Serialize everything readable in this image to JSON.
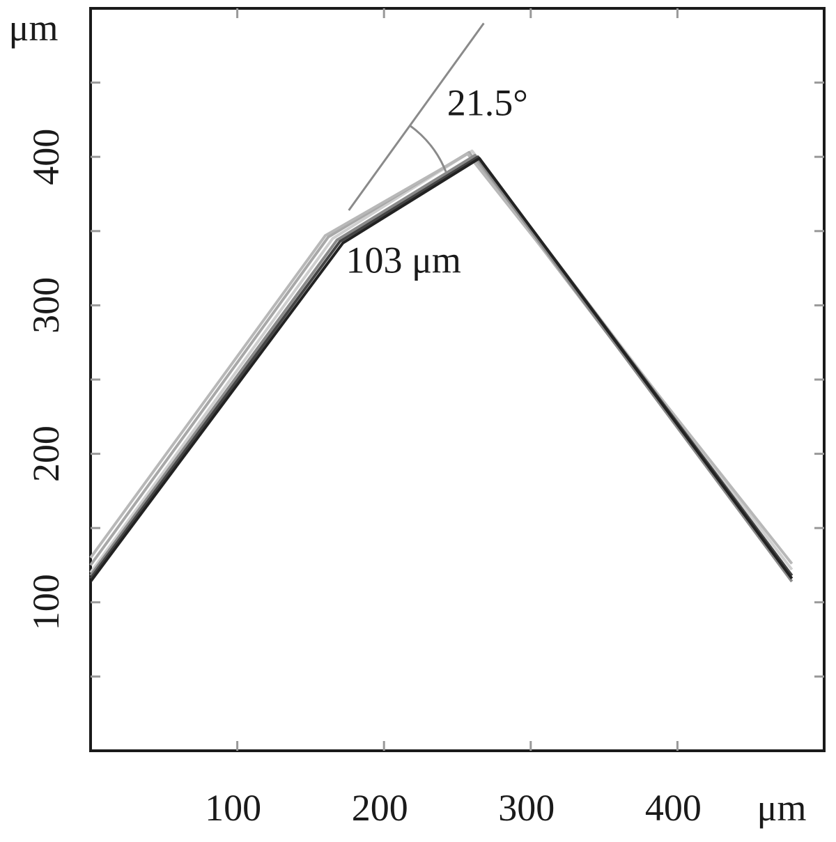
{
  "chart_data": {
    "type": "line",
    "xlabel": "μm",
    "ylabel": "μm",
    "xlim": [
      0,
      500
    ],
    "ylim": [
      0,
      500
    ],
    "x_ticks": [
      100,
      200,
      300,
      400
    ],
    "x_tick_labels": [
      "100",
      "200",
      "300",
      "400"
    ],
    "x_minor_ticks": [
      100,
      200,
      300,
      400
    ],
    "y_ticks": [
      100,
      200,
      300,
      400
    ],
    "y_tick_labels": [
      "100",
      "200",
      "300",
      "400"
    ],
    "y_minor_ticks": [
      50,
      150,
      250,
      350,
      450
    ],
    "grid": false,
    "series": [
      {
        "values": [
          [
            0,
            120
          ],
          [
            165,
            345
          ],
          [
            260,
            404
          ],
          [
            478,
            122
          ]
        ],
        "color": "#cfcfcf"
      },
      {
        "values": [
          [
            0,
            125
          ],
          [
            162,
            346
          ],
          [
            258,
            403
          ],
          [
            478,
            118
          ]
        ],
        "color": "#a8a8a8"
      },
      {
        "values": [
          [
            0,
            130
          ],
          [
            160,
            347
          ],
          [
            257,
            402
          ],
          [
            478,
            126
          ]
        ],
        "color": "#b8b8b8"
      },
      {
        "values": [
          [
            0,
            118
          ],
          [
            168,
            344
          ],
          [
            262,
            401
          ],
          [
            478,
            114
          ]
        ],
        "color": "#8a8a8a"
      },
      {
        "values": [
          [
            0,
            116
          ],
          [
            170,
            343
          ],
          [
            264,
            400
          ],
          [
            478,
            118
          ]
        ],
        "color": "#444444"
      },
      {
        "values": [
          [
            0,
            114
          ],
          [
            172,
            342
          ],
          [
            265,
            399
          ],
          [
            478,
            116
          ]
        ],
        "color": "#222222"
      }
    ],
    "reference_line": {
      "values": [
        [
          176,
          364
        ],
        [
          268,
          490
        ]
      ]
    },
    "annotations": [
      {
        "text": "21.5°",
        "x": 243,
        "y": 428
      },
      {
        "text": "103 μm",
        "x": 174,
        "y": 322
      }
    ]
  }
}
